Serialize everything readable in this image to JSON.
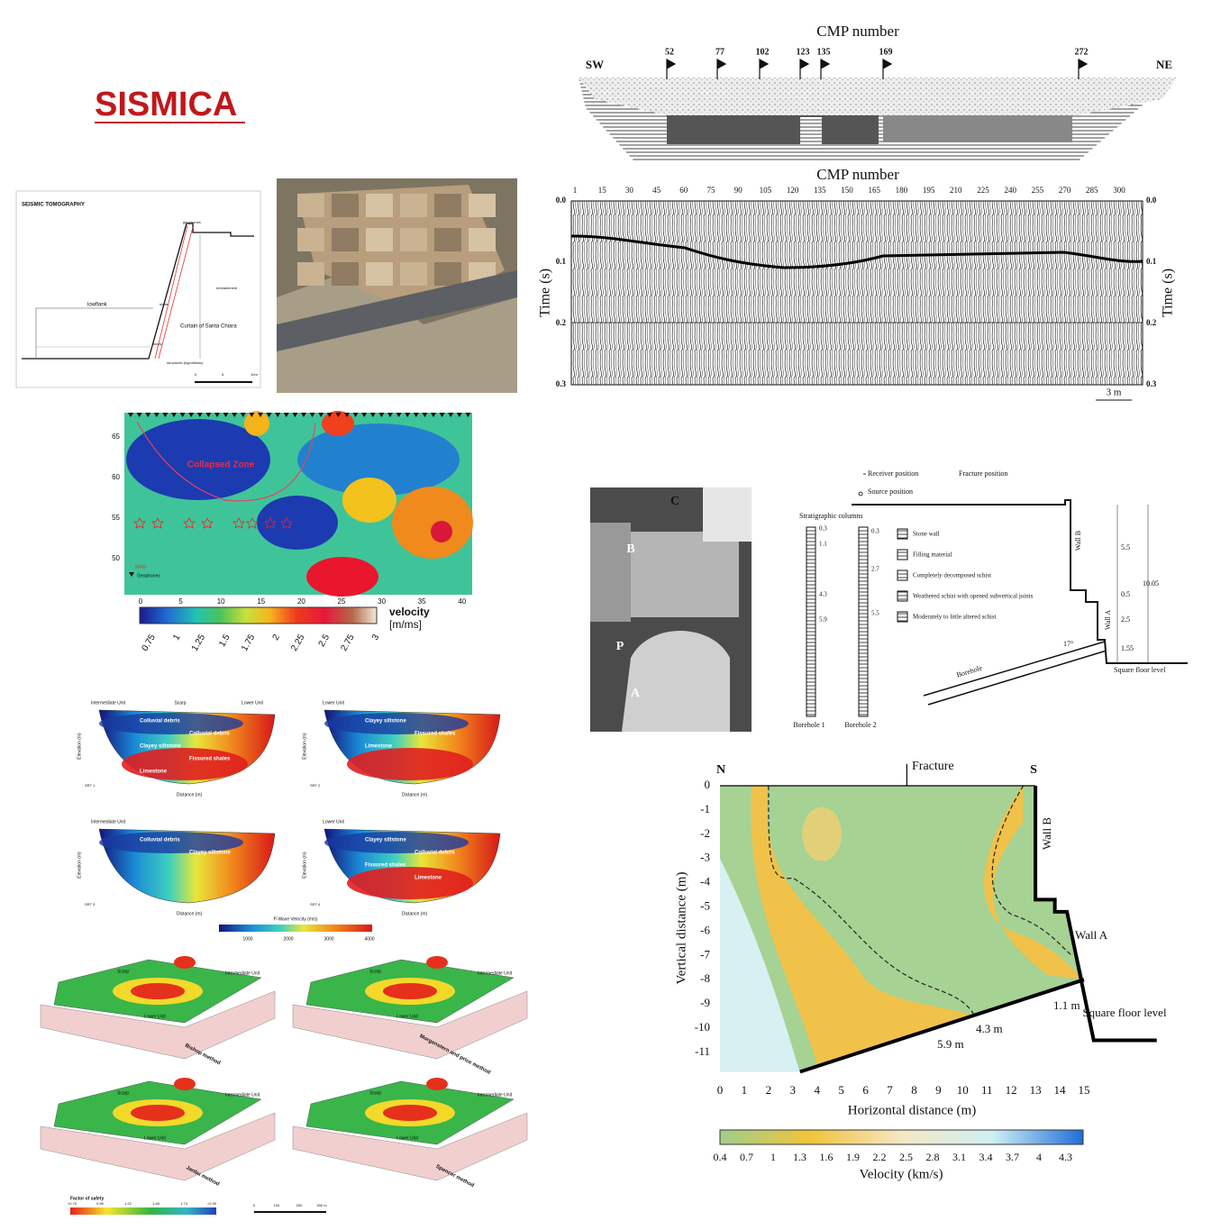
{
  "title": "SISMICA",
  "tomography_diagram": {
    "heading": "SEISMIC TOMOGRAPHY",
    "labels": [
      "geophones",
      "lowflank",
      "shots",
      "embankment",
      "Curtain of Santa Chiara",
      "shots",
      "structures (hypothesis)"
    ],
    "scale": [
      "0",
      "5",
      "10m"
    ]
  },
  "cmp_section": {
    "title": "CMP number",
    "left": "SW",
    "right": "NE",
    "flags": [
      "52",
      "77",
      "102",
      "123",
      "135",
      "169",
      "272"
    ]
  },
  "seismic_record": {
    "title": "CMP number",
    "xticks": [
      "1",
      "15",
      "30",
      "45",
      "60",
      "75",
      "90",
      "105",
      "120",
      "135",
      "150",
      "165",
      "180",
      "195",
      "210",
      "225",
      "240",
      "255",
      "270",
      "285",
      "300"
    ],
    "yticks": [
      "0.0",
      "0.1",
      "0.2",
      "0.3"
    ],
    "ylabel": "Time (s)",
    "scale": "3 m"
  },
  "velocity_tomogram": {
    "yticks": [
      "65",
      "60",
      "55",
      "50"
    ],
    "xticks": [
      "0",
      "5",
      "10",
      "15",
      "20",
      "25",
      "30",
      "35",
      "40"
    ],
    "annotation": "Collapsed Zone",
    "legend": [
      "shots",
      "Geophones"
    ],
    "colorbar_title": "velocity",
    "colorbar_unit": "[m/ms]",
    "colorbar_ticks": [
      "0.75",
      "1",
      "1.25",
      "1.5",
      "1.75",
      "2",
      "2.25",
      "2.5",
      "2.75",
      "3"
    ]
  },
  "photo": {
    "labels": [
      "B",
      "C",
      "P",
      "A"
    ]
  },
  "borehole_diagram": {
    "legend_top": [
      "Receiver position",
      "Source position",
      "Fracture position"
    ],
    "columns_title": "Stratigraphic columns",
    "legend": [
      "Stone wall",
      "Filling material",
      "Completely decomposed schist",
      "Weathered schist with opened subvertical joints",
      "Moderately to little altered schist"
    ],
    "borehole1": [
      "0.3",
      "1.1",
      "4.3",
      "5.9"
    ],
    "borehole2": [
      "0.3",
      "2.7",
      "5.5"
    ],
    "boreholes": [
      "Borehole 1",
      "Borehole 2"
    ],
    "walls": [
      "Wall B",
      "Wall A"
    ],
    "dims": [
      "5.5",
      "0.5",
      "2.5",
      "1.55",
      "10.05",
      "17°"
    ],
    "borehole": "Borehole",
    "floor": "Square floor level"
  },
  "srt_panels": [
    {
      "id": "SRT 1",
      "header": [
        "Intermediate Unit",
        "Scarp",
        "Lower Unit"
      ],
      "labels": [
        "Colluvial debris",
        "Colluvial debris",
        "Clayey siltstone",
        "Fissured shales",
        "Limestone"
      ]
    },
    {
      "id": "SRT 2",
      "header": [
        "Lower Unit"
      ],
      "labels": [
        "Clayey siltstone",
        "Fissured shales",
        "Limestone"
      ]
    },
    {
      "id": "SRT 3",
      "header": [
        "Intermediate Unit"
      ],
      "labels": [
        "Colluvial debris",
        "Clayey siltstone"
      ]
    },
    {
      "id": "SRT 4",
      "header": [
        "Lower Unit"
      ],
      "labels": [
        "Clayey siltstone",
        "Colluvial debris",
        "Fissured shales",
        "Limestone"
      ]
    }
  ],
  "srt_axes": {
    "xlabel": "Distance (m)",
    "ylabel": "Elevation (m)",
    "colorbar_title": "P-Wave Velocity (m/s)",
    "colorbar_ticks": [
      "1000",
      "2000",
      "3000",
      "4000"
    ]
  },
  "stability_maps": {
    "methods": [
      "Bishop method",
      "Morgenstern and price method",
      "Janbu method",
      "Spencer method"
    ],
    "labels": [
      "Scarp",
      "Intermediate Unit",
      "Lower Unit"
    ],
    "legend_title": "Factor of safety",
    "legend_ticks": [
      "<0.70",
      "0.96",
      "1.22",
      "1.48",
      "1.74",
      ">2.00"
    ],
    "scale": [
      "0",
      "100",
      "200",
      "300 m"
    ]
  },
  "wall_tomogram": {
    "north": "N",
    "south": "S",
    "fracture": "Fracture",
    "yticks": [
      "0",
      "-1",
      "-2",
      "-3",
      "-4",
      "-5",
      "-6",
      "-7",
      "-8",
      "-9",
      "-10",
      "-11"
    ],
    "xticks": [
      "0",
      "1",
      "2",
      "3",
      "4",
      "5",
      "6",
      "7",
      "8",
      "9",
      "10",
      "11",
      "12",
      "13",
      "14",
      "15"
    ],
    "ylabel": "Vertical distance (m)",
    "xlabel": "Horizontal distance (m)",
    "annotations": [
      "Wall B",
      "Wall A",
      "Square floor level",
      "1.1 m",
      "4.3 m",
      "5.9 m"
    ],
    "colorbar_ticks": [
      "0.4",
      "0.7",
      "1",
      "1.3",
      "1.6",
      "1.9",
      "2.2",
      "2.5",
      "2.8",
      "3.1",
      "3.4",
      "3.7",
      "4",
      "4.3"
    ],
    "colorbar_title": "Velocity (km/s)"
  }
}
